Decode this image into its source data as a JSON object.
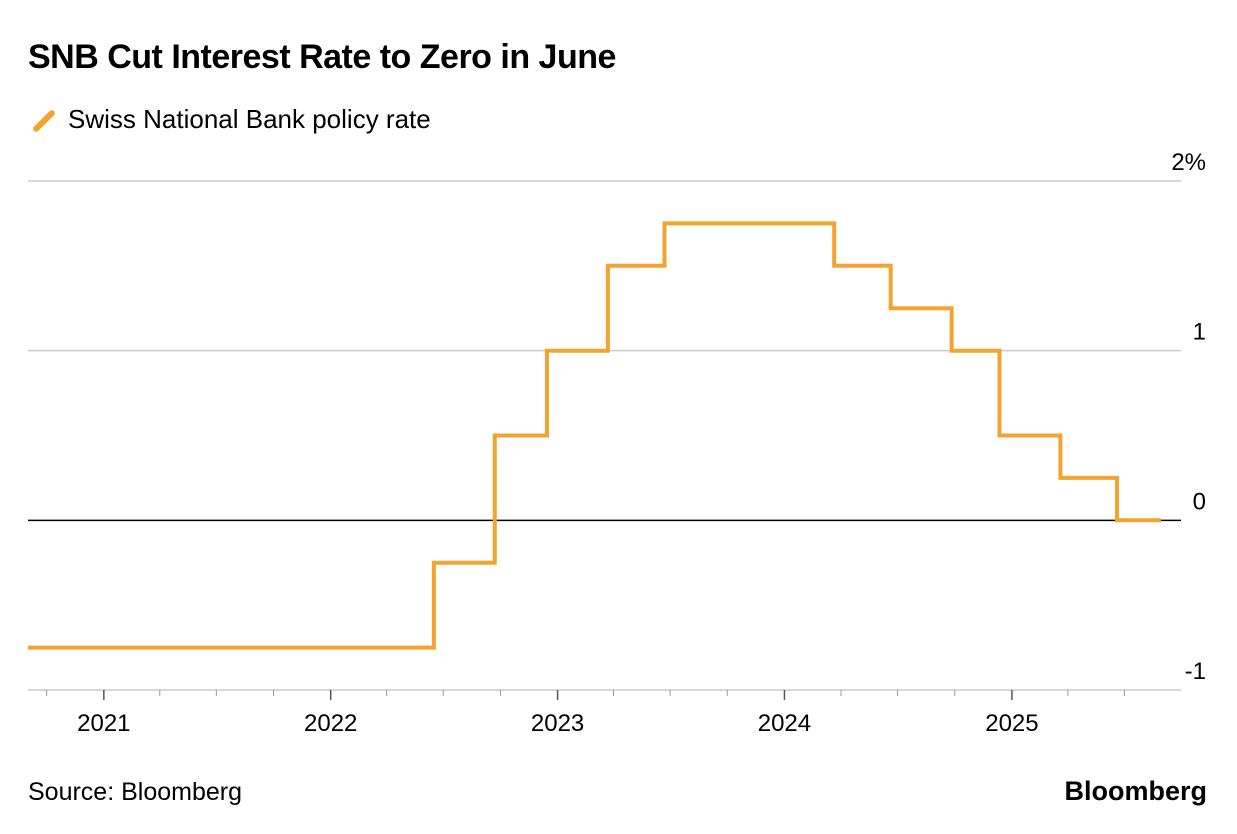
{
  "title": "SNB Cut Interest Rate to Zero in June",
  "source": "Source: Bloomberg",
  "brand": "Bloomberg",
  "colors": {
    "series": "#f5a32f",
    "grid": "#cccccc",
    "zero_line": "#000000",
    "text": "#000000"
  },
  "chart_data": {
    "type": "line",
    "step": true,
    "title": "SNB Cut Interest Rate to Zero in June",
    "xlabel": "",
    "ylabel": "",
    "y_ticks": [
      {
        "value": 2,
        "label": "2%"
      },
      {
        "value": 1,
        "label": "1"
      },
      {
        "value": 0,
        "label": "0"
      },
      {
        "value": -1,
        "label": "-1"
      }
    ],
    "ylim": [
      -1,
      2
    ],
    "x_range": [
      "2020-09-01",
      "2025-09-30"
    ],
    "x_ticks": [
      {
        "date": "2021-01-01",
        "label": "2021"
      },
      {
        "date": "2022-01-01",
        "label": "2022"
      },
      {
        "date": "2023-01-01",
        "label": "2023"
      },
      {
        "date": "2024-01-01",
        "label": "2024"
      },
      {
        "date": "2025-01-01",
        "label": "2025"
      }
    ],
    "legend": "top-left",
    "grid": true,
    "series": [
      {
        "name": "Swiss National Bank policy rate",
        "points": [
          {
            "date": "2020-09-01",
            "value": -0.75
          },
          {
            "date": "2022-06-16",
            "value": -0.25
          },
          {
            "date": "2022-09-22",
            "value": 0.5
          },
          {
            "date": "2022-12-15",
            "value": 1.0
          },
          {
            "date": "2023-03-23",
            "value": 1.5
          },
          {
            "date": "2023-06-22",
            "value": 1.75
          },
          {
            "date": "2024-03-21",
            "value": 1.5
          },
          {
            "date": "2024-06-20",
            "value": 1.25
          },
          {
            "date": "2024-09-26",
            "value": 1.0
          },
          {
            "date": "2024-12-12",
            "value": 0.5
          },
          {
            "date": "2025-03-20",
            "value": 0.25
          },
          {
            "date": "2025-06-19",
            "value": 0.0
          },
          {
            "date": "2025-08-29",
            "value": 0.0
          }
        ]
      }
    ]
  }
}
